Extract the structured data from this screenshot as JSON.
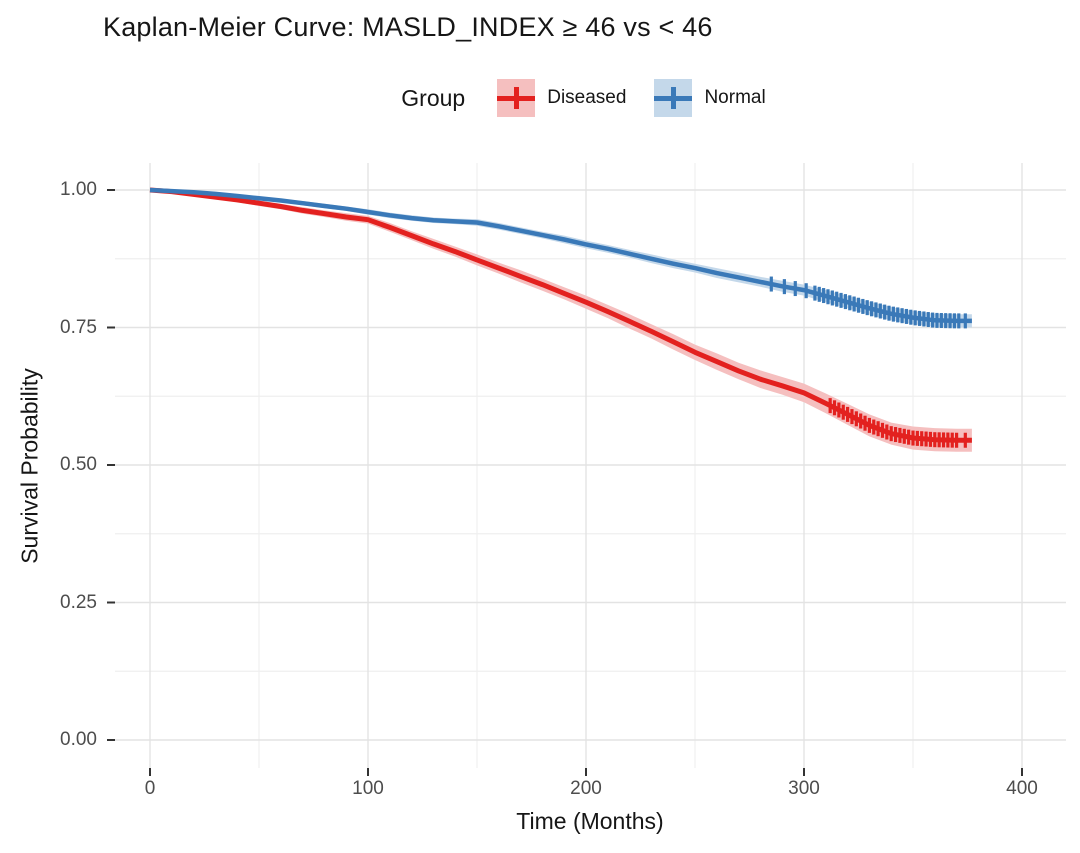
{
  "title": "Kaplan-Meier Curve: MASLD_INDEX ≥ 46 vs < 46",
  "legend": {
    "title": "Group"
  },
  "axes": {
    "x_tick_labels": [
      "0",
      "100",
      "200",
      "300",
      "400"
    ],
    "y_tick_labels": [
      "0.00",
      "0.25",
      "0.50",
      "0.75",
      "1.00"
    ]
  },
  "colors": {
    "diseased_line": "#E3211F",
    "diseased_band": "#F5BFBF",
    "normal_line": "#3A79B8",
    "normal_band": "#C4D8EA",
    "grid_major": "#E3E3E3",
    "grid_minor": "#EFEFEF",
    "axis_tick": "#333333",
    "tick_text": "#4d4d4d"
  },
  "chart_data": {
    "type": "line",
    "subtype": "kaplan-meier",
    "title": "Kaplan-Meier Curve: MASLD_INDEX ≥ 46 vs < 46",
    "xlabel": "Time (Months)",
    "ylabel": "Survival Probability",
    "legend_title": "Group",
    "legend_position": "top",
    "grid": "major+minor",
    "xlim": [
      -16,
      420
    ],
    "ylim": [
      -0.05,
      1.05
    ],
    "x_ticks": [
      0,
      100,
      200,
      300,
      400
    ],
    "y_ticks": [
      0,
      0.25,
      0.5,
      0.75,
      1
    ],
    "x_minor_ticks": [
      50,
      150,
      250,
      350
    ],
    "y_minor_ticks": [
      0.125,
      0.375,
      0.625,
      0.875
    ],
    "series": [
      {
        "name": "Diseased",
        "color": "#E3211F",
        "band_color": "#F5BFBF",
        "line_width": 5,
        "points": [
          [
            0,
            1.0,
            0.0
          ],
          [
            10,
            0.997,
            0.002
          ],
          [
            20,
            0.992,
            0.003
          ],
          [
            30,
            0.987,
            0.004
          ],
          [
            40,
            0.982,
            0.004
          ],
          [
            50,
            0.976,
            0.005
          ],
          [
            60,
            0.97,
            0.005
          ],
          [
            70,
            0.963,
            0.006
          ],
          [
            80,
            0.957,
            0.006
          ],
          [
            90,
            0.951,
            0.007
          ],
          [
            100,
            0.946,
            0.007
          ],
          [
            110,
            0.932,
            0.008
          ],
          [
            120,
            0.917,
            0.008
          ],
          [
            130,
            0.902,
            0.009
          ],
          [
            140,
            0.888,
            0.009
          ],
          [
            150,
            0.873,
            0.01
          ],
          [
            160,
            0.858,
            0.01
          ],
          [
            170,
            0.843,
            0.011
          ],
          [
            180,
            0.828,
            0.011
          ],
          [
            190,
            0.812,
            0.011
          ],
          [
            200,
            0.796,
            0.012
          ],
          [
            210,
            0.779,
            0.012
          ],
          [
            220,
            0.761,
            0.013
          ],
          [
            230,
            0.743,
            0.013
          ],
          [
            240,
            0.724,
            0.014
          ],
          [
            250,
            0.705,
            0.014
          ],
          [
            260,
            0.688,
            0.015
          ],
          [
            270,
            0.671,
            0.015
          ],
          [
            280,
            0.656,
            0.016
          ],
          [
            290,
            0.644,
            0.016
          ],
          [
            300,
            0.631,
            0.017
          ],
          [
            310,
            0.612,
            0.018
          ],
          [
            320,
            0.592,
            0.019
          ],
          [
            330,
            0.572,
            0.02
          ],
          [
            340,
            0.557,
            0.02
          ],
          [
            350,
            0.549,
            0.021
          ],
          [
            360,
            0.546,
            0.021
          ],
          [
            370,
            0.545,
            0.021
          ],
          [
            377,
            0.545,
            0.021
          ]
        ],
        "censor_times": [
          312,
          314,
          316,
          318,
          320,
          322,
          324,
          326,
          328,
          330,
          332,
          334,
          336,
          338,
          340,
          342,
          344,
          346,
          348,
          350,
          352,
          354,
          356,
          358,
          360,
          362,
          364,
          366,
          368,
          370,
          374
        ]
      },
      {
        "name": "Normal",
        "color": "#3A79B8",
        "band_color": "#C4D8EA",
        "line_width": 4.5,
        "points": [
          [
            0,
            1.0,
            0.0
          ],
          [
            10,
            0.998,
            0.001
          ],
          [
            20,
            0.996,
            0.002
          ],
          [
            30,
            0.993,
            0.002
          ],
          [
            40,
            0.989,
            0.003
          ],
          [
            50,
            0.985,
            0.003
          ],
          [
            60,
            0.981,
            0.003
          ],
          [
            70,
            0.976,
            0.004
          ],
          [
            80,
            0.971,
            0.004
          ],
          [
            90,
            0.966,
            0.004
          ],
          [
            100,
            0.96,
            0.005
          ],
          [
            110,
            0.954,
            0.005
          ],
          [
            120,
            0.949,
            0.005
          ],
          [
            130,
            0.945,
            0.005
          ],
          [
            140,
            0.943,
            0.005
          ],
          [
            150,
            0.941,
            0.006
          ],
          [
            160,
            0.934,
            0.006
          ],
          [
            170,
            0.926,
            0.006
          ],
          [
            180,
            0.918,
            0.006
          ],
          [
            190,
            0.91,
            0.007
          ],
          [
            200,
            0.901,
            0.007
          ],
          [
            210,
            0.893,
            0.007
          ],
          [
            220,
            0.884,
            0.007
          ],
          [
            230,
            0.875,
            0.008
          ],
          [
            240,
            0.866,
            0.008
          ],
          [
            250,
            0.858,
            0.008
          ],
          [
            260,
            0.849,
            0.009
          ],
          [
            270,
            0.841,
            0.009
          ],
          [
            280,
            0.833,
            0.009
          ],
          [
            290,
            0.825,
            0.01
          ],
          [
            300,
            0.818,
            0.01
          ],
          [
            310,
            0.807,
            0.011
          ],
          [
            320,
            0.796,
            0.011
          ],
          [
            330,
            0.785,
            0.012
          ],
          [
            340,
            0.775,
            0.012
          ],
          [
            350,
            0.768,
            0.012
          ],
          [
            360,
            0.763,
            0.012
          ],
          [
            370,
            0.762,
            0.012
          ],
          [
            377,
            0.762,
            0.012
          ]
        ],
        "censor_times": [
          285,
          291,
          296,
          301,
          305,
          307,
          309,
          311,
          313,
          315,
          317,
          319,
          321,
          323,
          325,
          327,
          329,
          331,
          333,
          335,
          337,
          339,
          341,
          343,
          345,
          347,
          349,
          351,
          353,
          355,
          357,
          359,
          361,
          363,
          365,
          367,
          369,
          371,
          374
        ]
      }
    ]
  }
}
